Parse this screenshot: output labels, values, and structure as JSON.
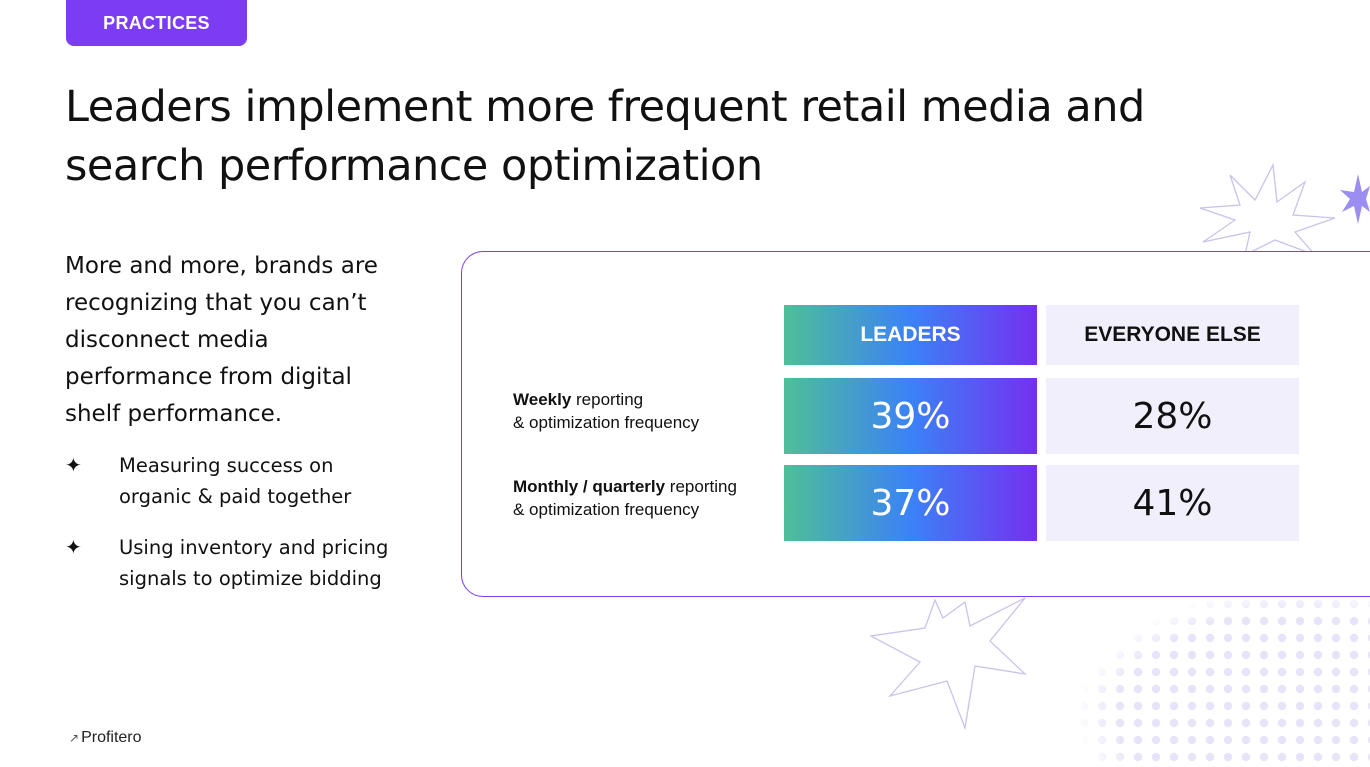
{
  "tag": "PRACTICES",
  "title": "Leaders implement more frequent retail media and search performance optimization",
  "intro": "More and more, brands are recognizing that you can’t disconnect media performance from digital shelf performance.",
  "bullets": [
    {
      "icon": "four-point-star-icon",
      "text": "Measuring success on organic & paid together"
    },
    {
      "icon": "four-point-star-icon",
      "text": "Using inventory and pricing signals to optimize bidding"
    }
  ],
  "table": {
    "columns": [
      "LEADERS",
      "EVERYONE ELSE"
    ],
    "rows": [
      {
        "label_bold": "Weekly",
        "label_rest_1": " reporting",
        "label_rest_2": "& optimization frequency",
        "values": [
          "39%",
          "28%"
        ]
      },
      {
        "label_bold": "Monthly / quarterly",
        "label_rest_1": " reporting",
        "label_rest_2": "& optimization frequency",
        "values": [
          "37%",
          "41%"
        ]
      }
    ]
  },
  "logo": {
    "text": "Profitero",
    "icon": "profitero-logo-icon"
  },
  "colors": {
    "accent": "#7b3cf3",
    "gradient_start": "#4fbf98",
    "gradient_mid": "#3b82f6",
    "gradient_end": "#7430f0",
    "light_cell": "#f2effd"
  }
}
